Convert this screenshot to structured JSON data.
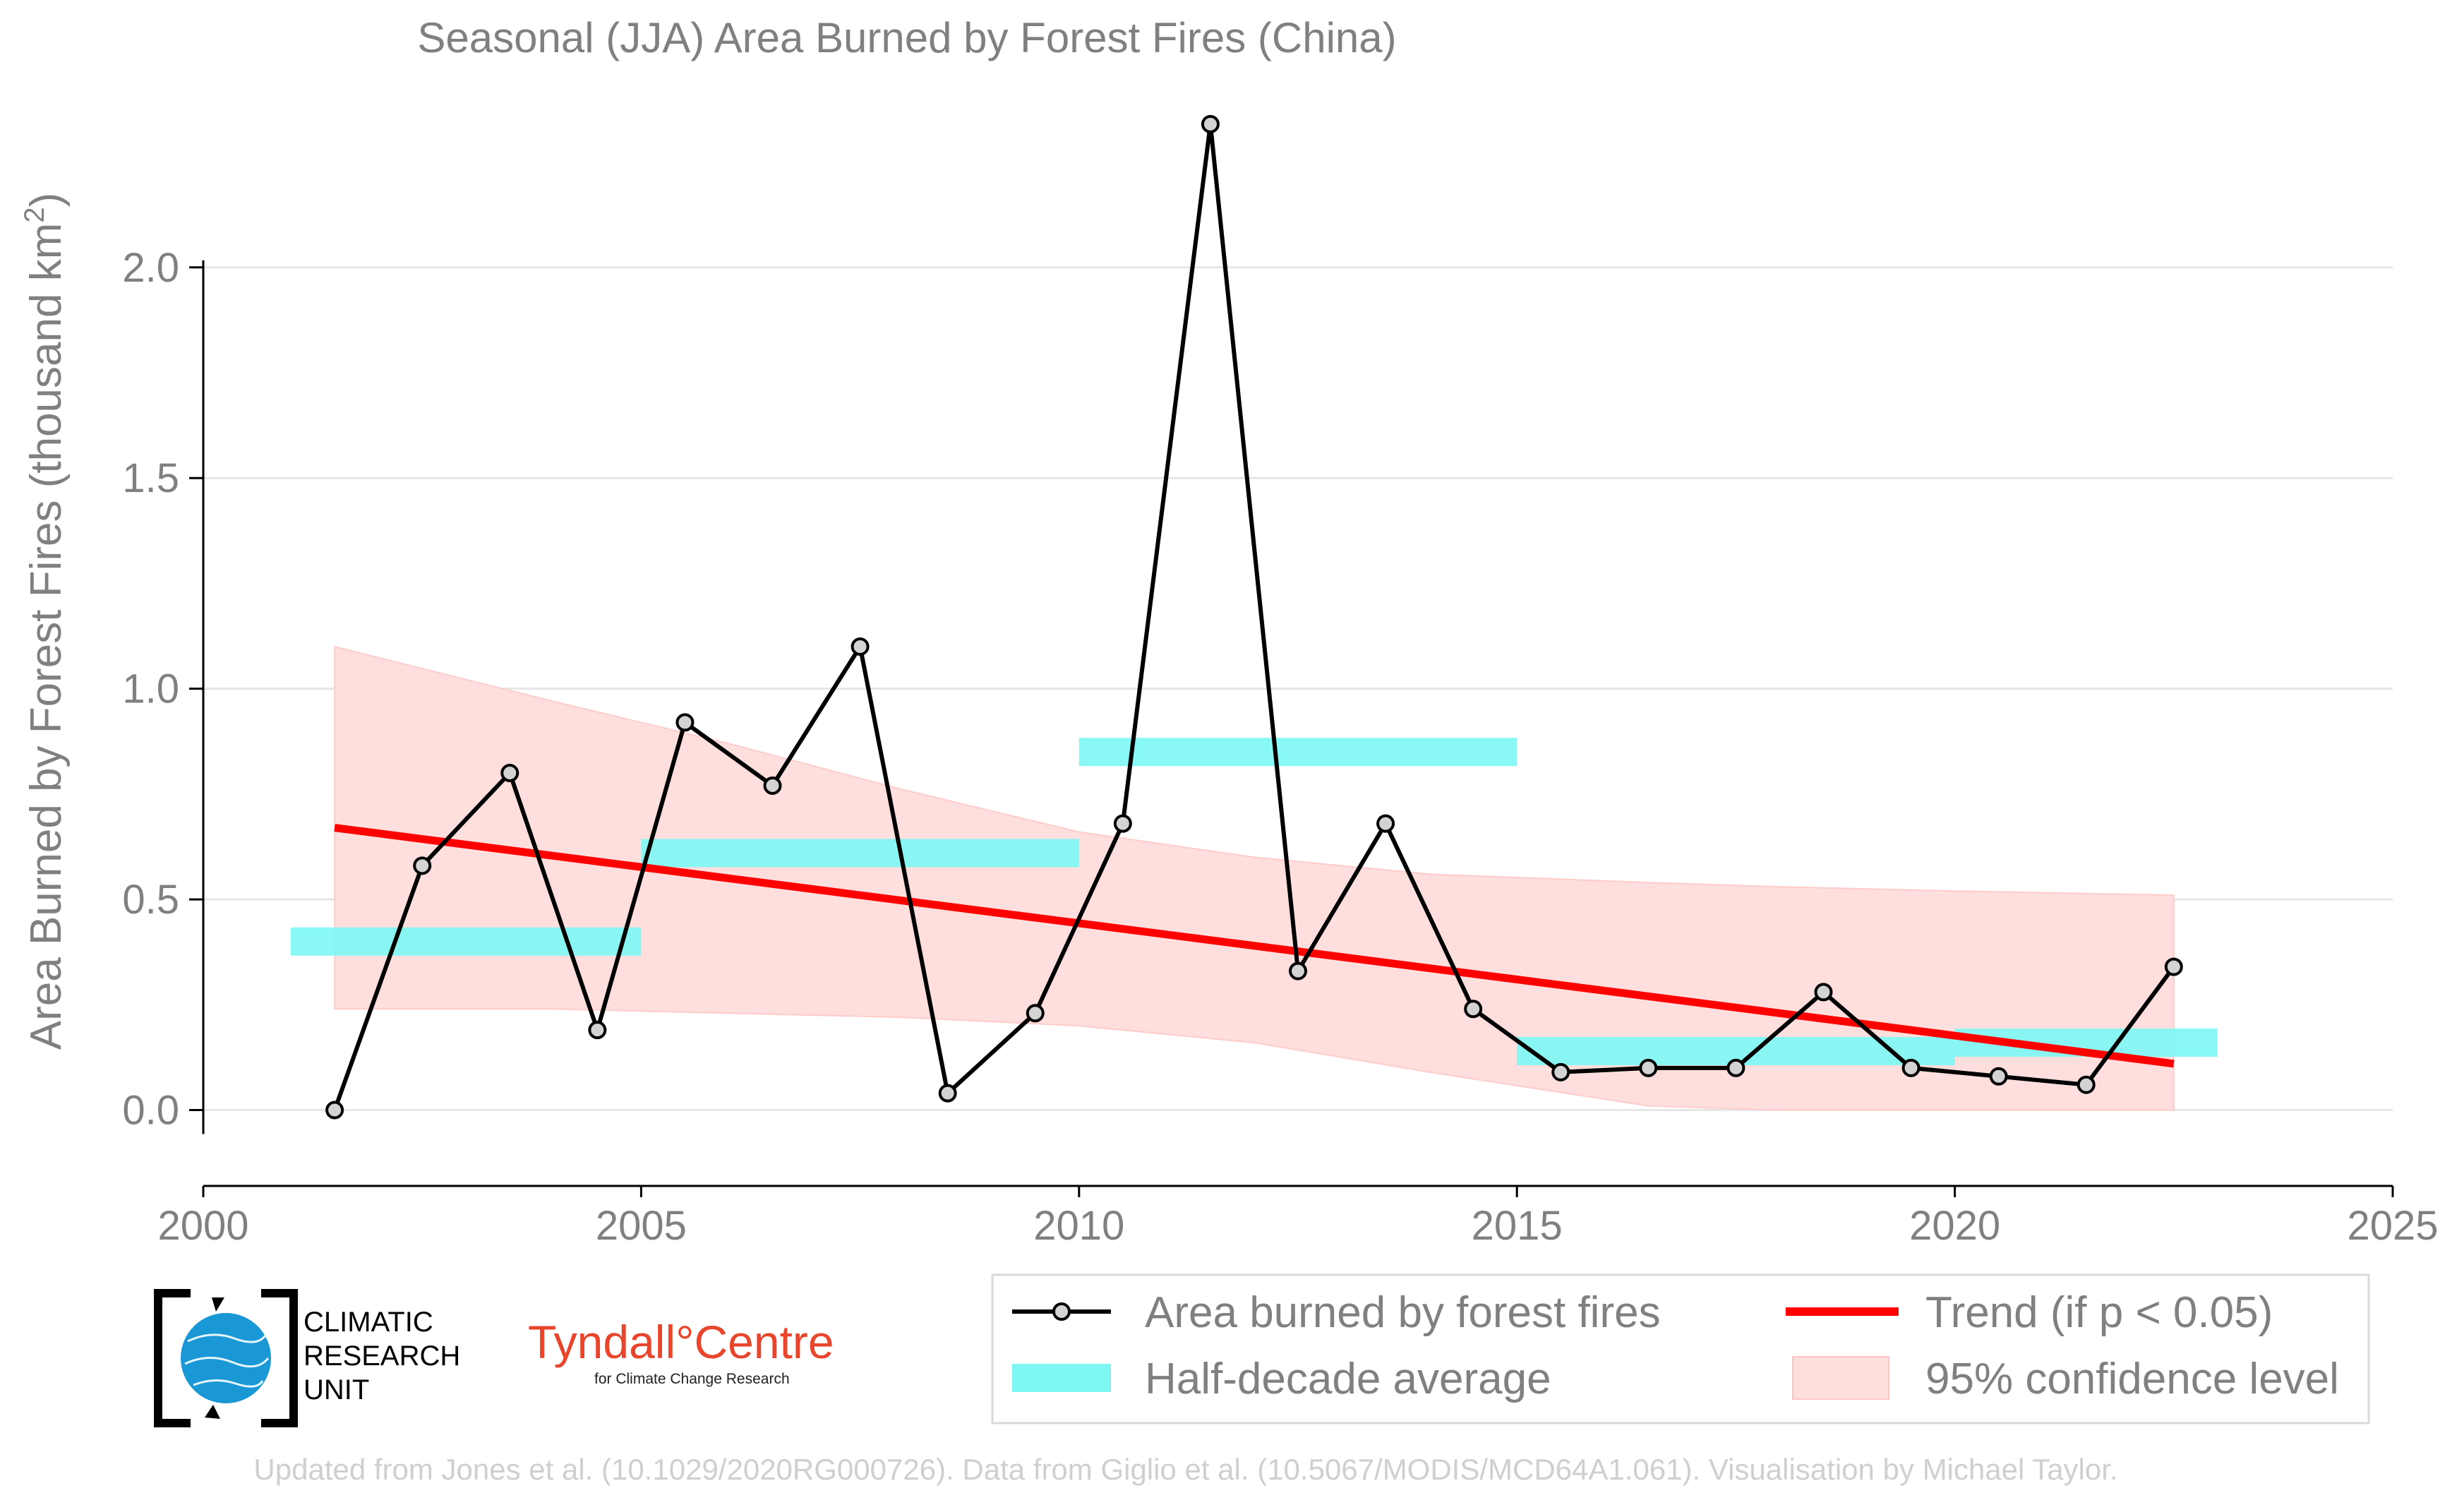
{
  "chart_data": {
    "type": "line",
    "title": "Seasonal (JJA) Area Burned by Forest Fires (China)",
    "ylabel": "Area Burned by Forest Fires (thousand km",
    "ylabel_superscript": "2",
    "ylabel_suffix": ")",
    "xlabel": "",
    "xlim": [
      2000,
      2025
    ],
    "ylim": [
      -0.18,
      2.4
    ],
    "x_ticks": [
      "2000",
      "2005",
      "2010",
      "2015",
      "2020",
      "2025"
    ],
    "y_ticks": [
      "0.0",
      "0.5",
      "1.0",
      "1.5",
      "2.0"
    ],
    "grid": "horizontal",
    "series": [
      {
        "name": "Area burned by forest fires",
        "color": "#000000",
        "x": [
          2001.5,
          2002.5,
          2003.5,
          2004.5,
          2005.5,
          2006.5,
          2007.5,
          2008.5,
          2009.5,
          2010.5,
          2011.5,
          2012.5,
          2013.5,
          2014.5,
          2015.5,
          2016.5,
          2017.5,
          2018.5,
          2019.5,
          2020.5,
          2021.5,
          2022.5
        ],
        "values": [
          0.0,
          0.58,
          0.8,
          0.19,
          0.92,
          0.77,
          1.1,
          0.04,
          0.23,
          0.68,
          2.34,
          0.33,
          0.68,
          0.24,
          0.09,
          0.1,
          0.1,
          0.28,
          0.1,
          0.08,
          0.06,
          0.34
        ]
      }
    ],
    "half_decade_average": {
      "name": "Half-decade average",
      "color": "#7ff7f5",
      "segments": [
        {
          "x": [
            2001,
            2005
          ],
          "value": 0.4
        },
        {
          "x": [
            2005,
            2010
          ],
          "value": 0.61
        },
        {
          "x": [
            2010,
            2015
          ],
          "value": 0.85
        },
        {
          "x": [
            2015,
            2020
          ],
          "value": 0.14
        },
        {
          "x": [
            2020,
            2023
          ],
          "value": 0.16
        }
      ]
    },
    "trend": {
      "name": "Trend (if p < 0.05)",
      "color": "#ff0000",
      "x": [
        2001.5,
        2022.5
      ],
      "values": [
        0.67,
        0.11
      ]
    },
    "confidence_band": {
      "name": "95% confidence level",
      "color": "#ffdede",
      "x": [
        2001.5,
        2004,
        2006,
        2008,
        2010,
        2012,
        2014,
        2016.5,
        2018,
        2020,
        2022.5
      ],
      "upper": [
        1.1,
        0.97,
        0.87,
        0.76,
        0.66,
        0.6,
        0.56,
        0.54,
        0.53,
        0.52,
        0.51
      ],
      "lower": [
        0.24,
        0.24,
        0.23,
        0.22,
        0.2,
        0.16,
        0.09,
        0.01,
        0.0,
        0.0,
        0.0
      ]
    },
    "legend": {
      "placement": "bottom-right",
      "entries": [
        "Area burned by forest fires",
        "Trend (if p < 0.05)",
        "Half-decade average",
        "95% confidence level"
      ]
    }
  },
  "logos": {
    "cru": [
      "CLIMATIC",
      "RESEARCH",
      "UNIT"
    ],
    "tyndall_name": "Tyndall°Centre",
    "tyndall_sub": "for Climate Change Research"
  },
  "credit": "Updated from Jones et al. (10.1029/2020RG000726). Data from Giglio et al. (10.5067/MODIS/MCD64A1.061). Visualisation by Michael Taylor."
}
